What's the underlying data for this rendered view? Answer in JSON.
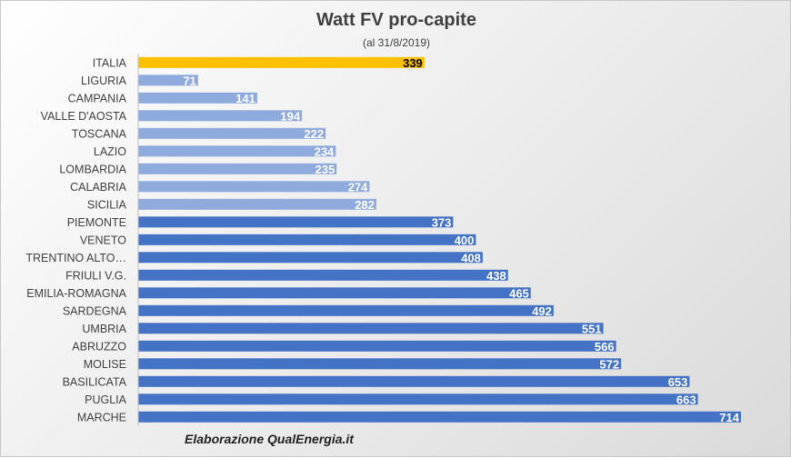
{
  "chart_data": {
    "type": "bar",
    "orientation": "horizontal",
    "title": "Watt FV pro-capite",
    "subtitle": "(al 31/8/2019)",
    "categories": [
      "ITALIA",
      "LIGURIA",
      "CAMPANIA",
      "VALLE D'AOSTA",
      "TOSCANA",
      "LAZIO",
      "LOMBARDIA",
      "CALABRIA",
      "SICILIA",
      "PIEMONTE",
      "VENETO",
      "TRENTINO ALTO…",
      "FRIULI V.G.",
      "EMILIA-ROMAGNA",
      "SARDEGNA",
      "UMBRIA",
      "ABRUZZO",
      "MOLISE",
      "BASILICATA",
      "PUGLIA",
      "MARCHE"
    ],
    "values": [
      339,
      71,
      141,
      194,
      222,
      234,
      235,
      274,
      282,
      373,
      400,
      408,
      438,
      465,
      492,
      551,
      566,
      572,
      653,
      663,
      714
    ],
    "data_labels": [
      "339",
      "71",
      "141",
      "194",
      "222",
      "234",
      "235",
      "274",
      "282",
      "373",
      "400",
      "408",
      "438",
      "465",
      "492",
      "551",
      "566",
      "572",
      "653",
      "663",
      "714"
    ],
    "bar_colors": [
      "#FFC000",
      "#8FAADC",
      "#8FAADC",
      "#8FAADC",
      "#8FAADC",
      "#8FAADC",
      "#8FAADC",
      "#8FAADC",
      "#8FAADC",
      "#4472C4",
      "#4472C4",
      "#4472C4",
      "#4472C4",
      "#4472C4",
      "#4472C4",
      "#4472C4",
      "#4472C4",
      "#4472C4",
      "#4472C4",
      "#4472C4",
      "#4472C4"
    ],
    "xlim": [
      0,
      714
    ],
    "grid": false,
    "legend": "none"
  },
  "credit": "Elaborazione QualEnergia.it"
}
